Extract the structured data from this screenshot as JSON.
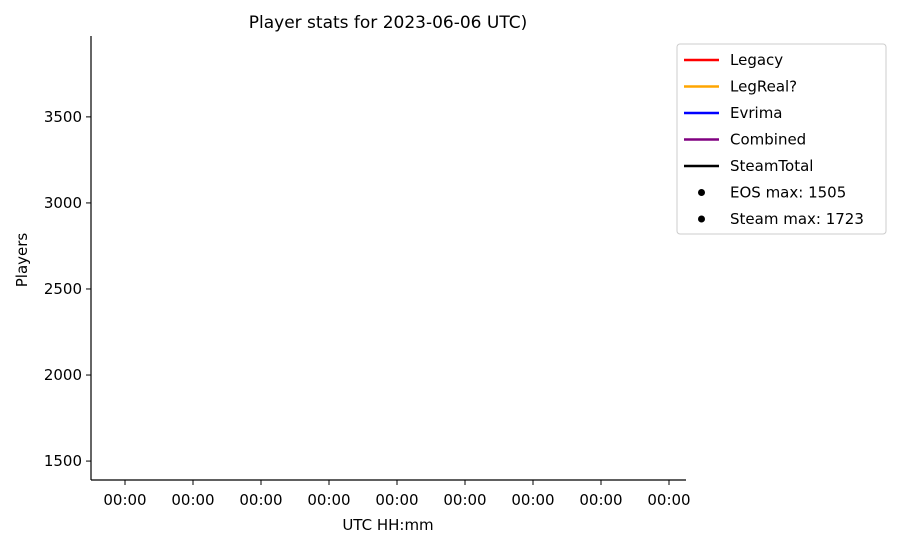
{
  "chart_data": {
    "type": "line",
    "title": "Player stats for 2023-06-06 UTC)",
    "xlabel": "UTC HH:mm",
    "ylabel": "Players",
    "x_ticks": [
      "00:00",
      "00:00",
      "00:00",
      "00:00",
      "00:00",
      "00:00",
      "00:00",
      "00:00",
      "00:00"
    ],
    "y_ticks": [
      1500,
      2000,
      2500,
      3000,
      3500
    ],
    "ylim": [
      1390,
      3970
    ],
    "grid": false,
    "legend_position": "top-right outside",
    "series": [
      {
        "name": "Legacy",
        "color": "#ff0000",
        "values": []
      },
      {
        "name": "LegReal?",
        "color": "#ffa500",
        "values": []
      },
      {
        "name": "Evrima",
        "color": "#0000ff",
        "values": []
      },
      {
        "name": "Combined",
        "color": "#800080",
        "values": []
      },
      {
        "name": "SteamTotal",
        "color": "#000000",
        "values": []
      }
    ],
    "markers": [
      {
        "label": "EOS max: 1505",
        "color": "#000000"
      },
      {
        "label": "Steam max: 1723",
        "color": "#000000"
      }
    ]
  }
}
